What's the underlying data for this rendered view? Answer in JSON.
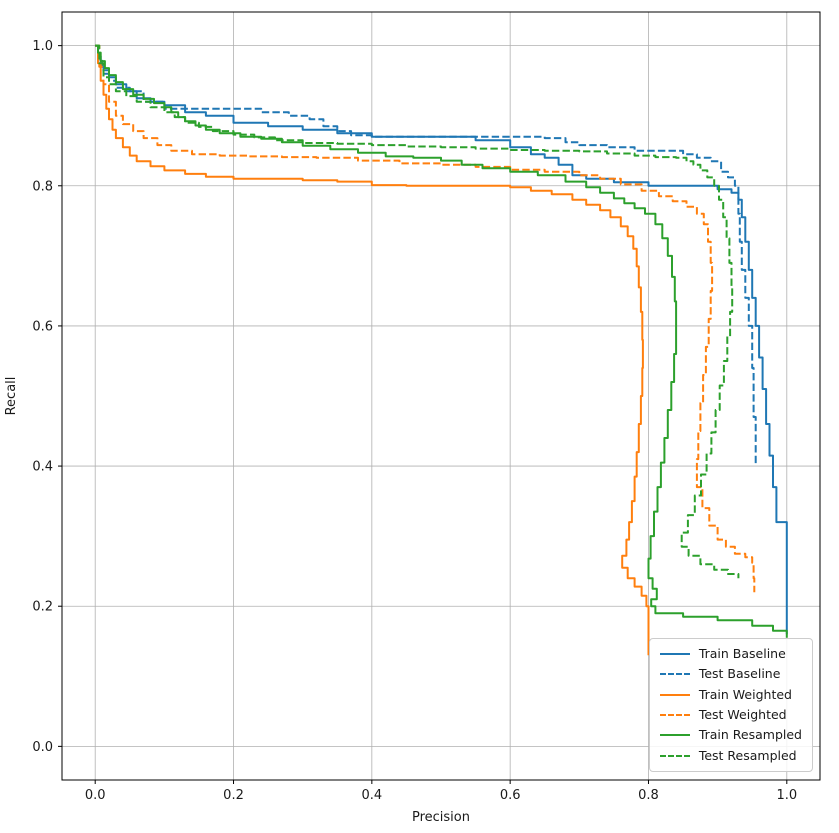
{
  "figure": {
    "background": "#ffffff",
    "grid_color": "#b0b0b0",
    "axis_color": "#000000",
    "text_color": "#1a1a1a"
  },
  "chart_data": {
    "type": "line",
    "title": "",
    "xlabel": "Precision",
    "ylabel": "Recall",
    "xlim": [
      -0.048,
      1.048
    ],
    "ylim": [
      -0.048,
      1.048
    ],
    "x_ticks": [
      0.0,
      0.2,
      0.4,
      0.6,
      0.8,
      1.0
    ],
    "y_ticks": [
      0.0,
      0.2,
      0.4,
      0.6,
      0.8,
      1.0
    ],
    "x_tick_labels": [
      "0.0",
      "0.2",
      "0.4",
      "0.6",
      "0.8",
      "1.0"
    ],
    "y_tick_labels": [
      "0.0",
      "0.2",
      "0.4",
      "0.6",
      "0.8",
      "1.0"
    ],
    "grid": true,
    "legend_position": "lower right",
    "series": [
      {
        "name": "Train Baseline",
        "color": "#1f77b4",
        "style": "solid",
        "x": [
          0.0,
          0.004,
          0.008,
          0.012,
          0.02,
          0.03,
          0.045,
          0.06,
          0.08,
          0.1,
          0.13,
          0.16,
          0.2,
          0.25,
          0.3,
          0.35,
          0.4,
          0.45,
          0.5,
          0.55,
          0.6,
          0.63,
          0.65,
          0.67,
          0.69,
          0.71,
          0.75,
          0.8,
          0.85,
          0.9,
          0.92,
          0.93,
          0.935,
          0.94,
          0.945,
          0.95,
          0.955,
          0.96,
          0.965,
          0.97,
          0.975,
          0.98,
          0.985,
          1.0,
          1.0
        ],
        "y": [
          1.0,
          0.985,
          0.97,
          0.96,
          0.955,
          0.945,
          0.935,
          0.925,
          0.92,
          0.915,
          0.905,
          0.9,
          0.89,
          0.885,
          0.88,
          0.875,
          0.87,
          0.87,
          0.87,
          0.865,
          0.855,
          0.845,
          0.84,
          0.83,
          0.815,
          0.81,
          0.805,
          0.8,
          0.8,
          0.795,
          0.79,
          0.78,
          0.755,
          0.72,
          0.68,
          0.64,
          0.6,
          0.555,
          0.51,
          0.46,
          0.415,
          0.37,
          0.32,
          0.28,
          0.16
        ]
      },
      {
        "name": "Test Baseline",
        "color": "#1f77b4",
        "style": "dashed",
        "x": [
          0.0,
          0.005,
          0.01,
          0.02,
          0.03,
          0.05,
          0.07,
          0.1,
          0.15,
          0.2,
          0.24,
          0.28,
          0.31,
          0.33,
          0.35,
          0.37,
          0.4,
          0.45,
          0.5,
          0.55,
          0.6,
          0.65,
          0.68,
          0.7,
          0.74,
          0.78,
          0.82,
          0.85,
          0.87,
          0.89,
          0.905,
          0.915,
          0.925,
          0.93,
          0.932,
          0.935,
          0.94,
          0.945,
          0.95,
          0.952,
          0.955
        ],
        "y": [
          1.0,
          0.98,
          0.965,
          0.95,
          0.94,
          0.935,
          0.92,
          0.91,
          0.91,
          0.91,
          0.905,
          0.9,
          0.895,
          0.885,
          0.878,
          0.872,
          0.87,
          0.87,
          0.87,
          0.87,
          0.87,
          0.868,
          0.862,
          0.858,
          0.855,
          0.85,
          0.85,
          0.845,
          0.84,
          0.835,
          0.82,
          0.812,
          0.8,
          0.76,
          0.72,
          0.68,
          0.64,
          0.6,
          0.54,
          0.47,
          0.4
        ]
      },
      {
        "name": "Train Weighted",
        "color": "#ff7f0e",
        "style": "solid",
        "x": [
          0.0,
          0.004,
          0.008,
          0.012,
          0.016,
          0.02,
          0.025,
          0.03,
          0.04,
          0.05,
          0.06,
          0.08,
          0.1,
          0.13,
          0.16,
          0.2,
          0.25,
          0.3,
          0.35,
          0.4,
          0.45,
          0.5,
          0.55,
          0.6,
          0.63,
          0.66,
          0.69,
          0.71,
          0.73,
          0.745,
          0.76,
          0.77,
          0.778,
          0.783,
          0.786,
          0.789,
          0.791,
          0.792,
          0.791,
          0.789,
          0.786,
          0.783,
          0.78,
          0.776,
          0.772,
          0.768,
          0.762,
          0.77,
          0.78,
          0.79,
          0.797,
          0.8,
          0.8
        ],
        "y": [
          1.0,
          0.975,
          0.95,
          0.93,
          0.91,
          0.895,
          0.88,
          0.868,
          0.855,
          0.843,
          0.835,
          0.828,
          0.822,
          0.817,
          0.813,
          0.81,
          0.81,
          0.808,
          0.806,
          0.801,
          0.8,
          0.8,
          0.8,
          0.798,
          0.793,
          0.788,
          0.78,
          0.773,
          0.765,
          0.755,
          0.742,
          0.728,
          0.71,
          0.685,
          0.655,
          0.62,
          0.58,
          0.54,
          0.5,
          0.46,
          0.42,
          0.385,
          0.35,
          0.32,
          0.295,
          0.272,
          0.255,
          0.24,
          0.228,
          0.215,
          0.2,
          0.17,
          0.13
        ]
      },
      {
        "name": "Test Weighted",
        "color": "#ff7f0e",
        "style": "dashed",
        "x": [
          0.0,
          0.006,
          0.012,
          0.02,
          0.03,
          0.04,
          0.055,
          0.07,
          0.09,
          0.11,
          0.14,
          0.18,
          0.22,
          0.27,
          0.32,
          0.38,
          0.44,
          0.5,
          0.55,
          0.6,
          0.65,
          0.7,
          0.73,
          0.76,
          0.79,
          0.815,
          0.835,
          0.855,
          0.87,
          0.88,
          0.886,
          0.89,
          0.892,
          0.89,
          0.887,
          0.883,
          0.879,
          0.875,
          0.872,
          0.87,
          0.878,
          0.888,
          0.9,
          0.912,
          0.925,
          0.94,
          0.95,
          0.952,
          0.953
        ],
        "y": [
          1.0,
          0.97,
          0.945,
          0.92,
          0.9,
          0.888,
          0.878,
          0.868,
          0.858,
          0.85,
          0.845,
          0.843,
          0.842,
          0.841,
          0.84,
          0.836,
          0.832,
          0.83,
          0.827,
          0.823,
          0.82,
          0.815,
          0.81,
          0.802,
          0.793,
          0.785,
          0.778,
          0.77,
          0.76,
          0.745,
          0.72,
          0.69,
          0.65,
          0.61,
          0.57,
          0.53,
          0.49,
          0.45,
          0.41,
          0.37,
          0.34,
          0.315,
          0.295,
          0.285,
          0.275,
          0.27,
          0.262,
          0.24,
          0.22
        ]
      },
      {
        "name": "Train Resampled",
        "color": "#2ca02c",
        "style": "solid",
        "x": [
          0.0,
          0.004,
          0.008,
          0.014,
          0.02,
          0.03,
          0.04,
          0.055,
          0.07,
          0.085,
          0.1,
          0.11,
          0.12,
          0.13,
          0.145,
          0.16,
          0.18,
          0.21,
          0.24,
          0.27,
          0.3,
          0.34,
          0.38,
          0.42,
          0.46,
          0.5,
          0.53,
          0.56,
          0.6,
          0.64,
          0.68,
          0.71,
          0.73,
          0.75,
          0.765,
          0.78,
          0.795,
          0.81,
          0.82,
          0.828,
          0.834,
          0.838,
          0.84,
          0.84,
          0.837,
          0.833,
          0.828,
          0.823,
          0.818,
          0.813,
          0.808,
          0.803,
          0.8,
          0.806,
          0.812,
          0.804,
          0.81,
          0.85,
          0.9,
          0.95,
          0.98,
          1.0,
          1.0
        ],
        "y": [
          1.0,
          0.99,
          0.978,
          0.968,
          0.958,
          0.948,
          0.938,
          0.93,
          0.924,
          0.918,
          0.912,
          0.905,
          0.898,
          0.892,
          0.886,
          0.88,
          0.875,
          0.87,
          0.867,
          0.862,
          0.857,
          0.852,
          0.847,
          0.842,
          0.84,
          0.836,
          0.83,
          0.825,
          0.82,
          0.815,
          0.806,
          0.798,
          0.79,
          0.782,
          0.775,
          0.768,
          0.76,
          0.745,
          0.725,
          0.7,
          0.67,
          0.635,
          0.6,
          0.56,
          0.52,
          0.48,
          0.44,
          0.405,
          0.37,
          0.335,
          0.3,
          0.268,
          0.24,
          0.225,
          0.21,
          0.2,
          0.19,
          0.185,
          0.18,
          0.172,
          0.165,
          0.16,
          0.155
        ]
      },
      {
        "name": "Test Resampled",
        "color": "#2ca02c",
        "style": "dashed",
        "x": [
          0.0,
          0.006,
          0.012,
          0.02,
          0.03,
          0.045,
          0.06,
          0.08,
          0.1,
          0.115,
          0.13,
          0.15,
          0.17,
          0.2,
          0.23,
          0.26,
          0.3,
          0.35,
          0.4,
          0.45,
          0.5,
          0.55,
          0.6,
          0.65,
          0.7,
          0.74,
          0.78,
          0.81,
          0.84,
          0.855,
          0.865,
          0.875,
          0.885,
          0.895,
          0.902,
          0.908,
          0.913,
          0.917,
          0.92,
          0.921,
          0.918,
          0.914,
          0.909,
          0.903,
          0.897,
          0.891,
          0.884,
          0.876,
          0.867,
          0.857,
          0.848,
          0.858,
          0.875,
          0.895,
          0.915,
          0.93
        ],
        "y": [
          1.0,
          0.975,
          0.955,
          0.945,
          0.935,
          0.928,
          0.92,
          0.912,
          0.905,
          0.898,
          0.89,
          0.884,
          0.878,
          0.873,
          0.869,
          0.865,
          0.861,
          0.86,
          0.858,
          0.856,
          0.855,
          0.853,
          0.851,
          0.85,
          0.849,
          0.846,
          0.843,
          0.841,
          0.84,
          0.835,
          0.83,
          0.822,
          0.812,
          0.8,
          0.78,
          0.755,
          0.725,
          0.69,
          0.655,
          0.62,
          0.585,
          0.55,
          0.515,
          0.48,
          0.448,
          0.418,
          0.388,
          0.358,
          0.33,
          0.305,
          0.285,
          0.272,
          0.26,
          0.252,
          0.246,
          0.24
        ]
      }
    ]
  }
}
